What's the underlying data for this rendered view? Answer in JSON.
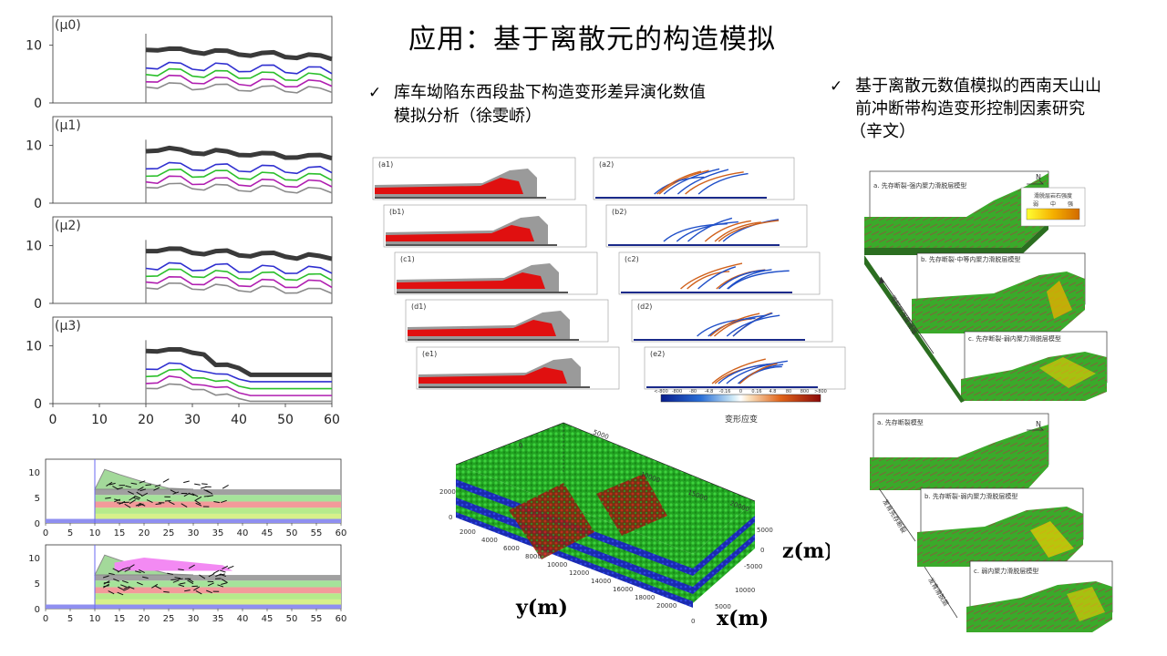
{
  "slide": {
    "title": "应用：基于离散元的构造模拟"
  },
  "bullets": {
    "middle": {
      "check": "✓",
      "line1": "库车坳陷东西段盐下构造变形差异演化数值",
      "line2": "模拟分析（徐雯峤）"
    },
    "right": {
      "check": "✓",
      "line1": "基于离散元数值模拟的西南天山山",
      "line2": "前冲断带构造变形控制因素研究",
      "line3": "（辛文）"
    }
  },
  "left_panels": {
    "labels": [
      "(μ0)",
      "(μ1)",
      "(μ2)",
      "(μ3)"
    ],
    "y_ticks": [
      "10",
      "0"
    ],
    "x_ticks": [
      "0",
      "10",
      "20",
      "30",
      "40",
      "50",
      "60"
    ]
  },
  "left_bottom": {
    "y_ticks": [
      "10",
      "5",
      "0"
    ],
    "x_ticks": [
      "0",
      "5",
      "10",
      "15",
      "20",
      "25",
      "30",
      "35",
      "40",
      "45",
      "50",
      "55",
      "60"
    ]
  },
  "middle_figure": {
    "panel_labels_left": [
      "(a1)",
      "(b1)",
      "(c1)",
      "(d1)",
      "(e1)"
    ],
    "panel_labels_right": [
      "(a2)",
      "(b2)",
      "(c2)",
      "(d2)",
      "(e2)"
    ],
    "colorbar_ticks": [
      "<-800",
      "-800",
      "-80",
      "-4.8",
      "-0.16",
      "0",
      "0.16",
      "4.8",
      "80",
      "800",
      ">800"
    ],
    "colorbar_title": "变形应变"
  },
  "model3d": {
    "label_z": "z(m)",
    "label_y": "y(m)",
    "label_x": "x(m)",
    "top_ticks": [
      "0",
      "5000"
    ],
    "top_right_ticks": [
      "10000",
      "15000",
      "20000"
    ],
    "left_ticks": [
      "2000",
      "0"
    ],
    "front_ticks": [
      "2000",
      "4000",
      "6000",
      "8000",
      "10000",
      "12000",
      "14000",
      "16000",
      "18000",
      "20000"
    ],
    "right_ticks": [
      "5000",
      "0",
      "-5000"
    ],
    "x_ticks": [
      "0",
      "5000",
      "10000"
    ]
  },
  "right_figure": {
    "top": {
      "a_label": "a. 先存断裂-强内聚力滑脱层模型",
      "b_label": "b. 先存断裂-中等内聚力滑脱层模型",
      "c_label": "c. 先存断裂-弱内聚力滑脱层模型",
      "side_label": "滑脱层强度增强",
      "north": "N",
      "legend_title": "滑脱层岩石强度",
      "legend_weak": "弱",
      "legend_mid": "中",
      "legend_strong": "强"
    },
    "bottom": {
      "a_label": "a. 先存断裂模型",
      "b_label": "b. 先存断裂-弱内聚力滑脱层模型",
      "c_label": "c. 弱内聚力滑脱层模型",
      "side_label1": "发育先存断裂",
      "side_label2": "发育滑脱层",
      "north": "N"
    }
  },
  "colors": {
    "black_layer": "#333333",
    "blue_layer": "#2f2fd0",
    "green_layer": "#2bbf2b",
    "magenta_layer": "#b01fb0",
    "gray_layer": "#8a8a8a",
    "sim_red": "#e01010",
    "sim_gray": "#9a9a9a",
    "model_green": "#2faa2f",
    "model_blue": "#1a2ab0"
  }
}
